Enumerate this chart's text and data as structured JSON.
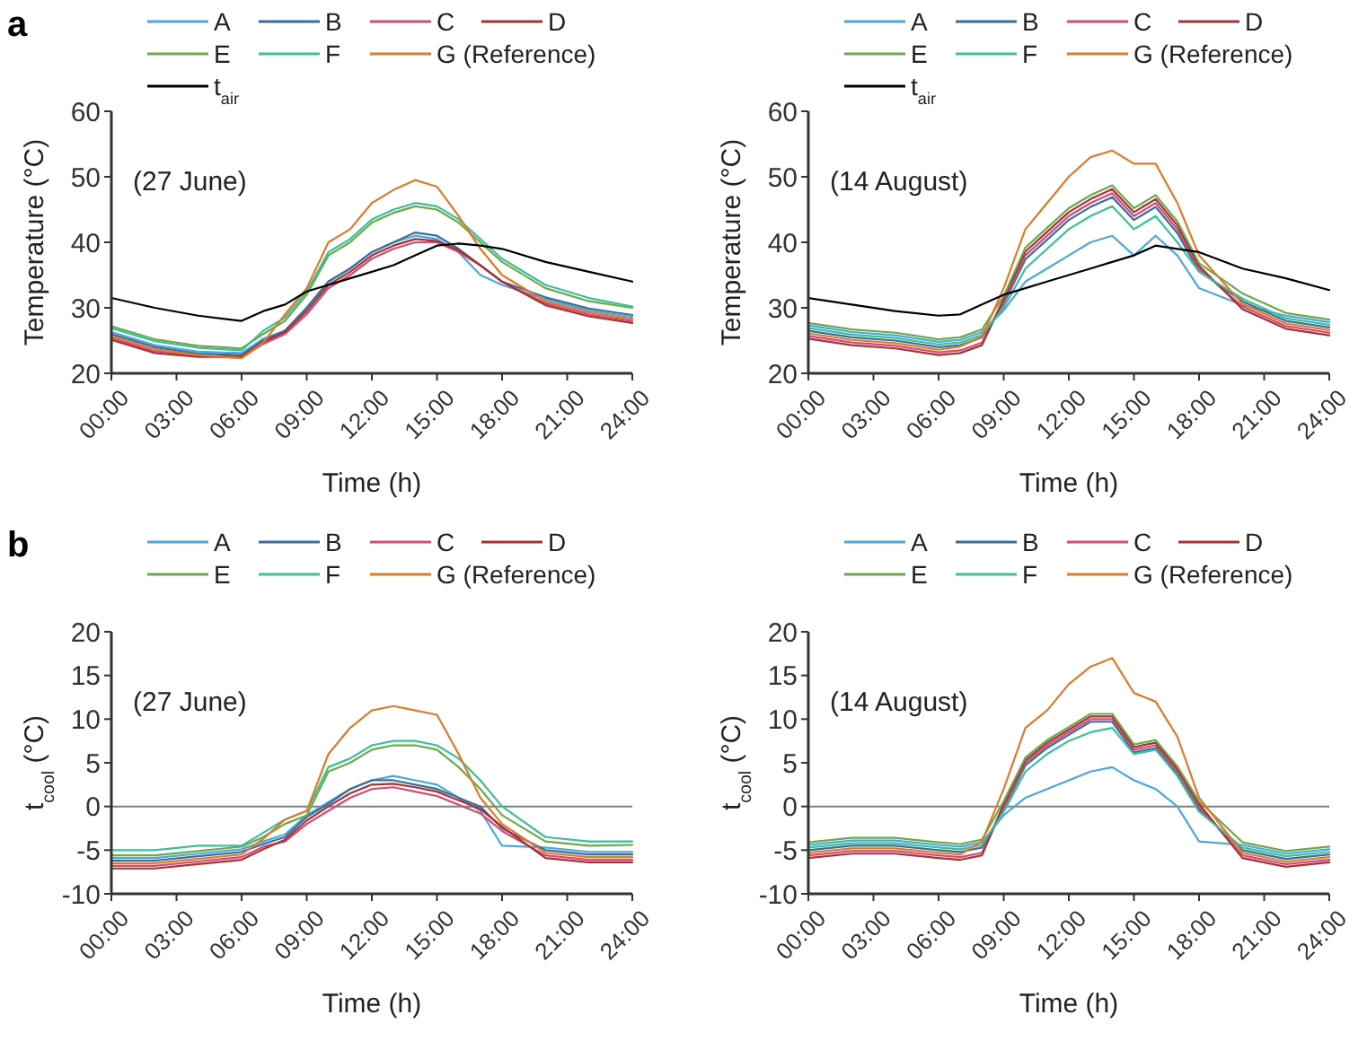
{
  "chart_data": [
    {
      "type": "line",
      "annotations": [
        "a",
        "(27 June)"
      ],
      "xlabel": "Time (h)",
      "ylabel": "Temperature (°C)",
      "legend": "top",
      "xlim": [
        0,
        24
      ],
      "ylim": [
        20,
        60
      ],
      "yticks": [
        20,
        30,
        40,
        50,
        60
      ],
      "xticks": [
        {
          "value": 0,
          "label": "00:00"
        },
        {
          "value": 3,
          "label": "03:00"
        },
        {
          "value": 6,
          "label": "06:00"
        },
        {
          "value": 9,
          "label": "09:00"
        },
        {
          "value": 12,
          "label": "12:00"
        },
        {
          "value": 15,
          "label": "15:00"
        },
        {
          "value": 18,
          "label": "18:00"
        },
        {
          "value": 21,
          "label": "21:00"
        },
        {
          "value": 24,
          "label": "24:00"
        }
      ],
      "x": [
        0,
        2,
        4,
        6,
        7,
        8,
        9,
        10,
        11,
        12,
        13,
        14,
        15,
        16,
        17,
        18,
        20,
        22,
        24
      ],
      "series": [
        {
          "name": "A",
          "color": "#4aa8dc",
          "values": [
            26.3,
            24.3,
            23.3,
            23.1,
            25.3,
            26.5,
            30,
            34,
            36,
            38.5,
            40,
            41,
            40.5,
            38.5,
            35,
            33.5,
            31.3,
            29.6,
            28.6
          ]
        },
        {
          "name": "B",
          "color": "#3a6e9a",
          "values": [
            26,
            24,
            23,
            22.8,
            25,
            26.5,
            30,
            34,
            36,
            38.5,
            40,
            41.5,
            41,
            39,
            36.5,
            34,
            31.6,
            29.9,
            28.9
          ]
        },
        {
          "name": "C",
          "color": "#d44a7a",
          "values": [
            25.4,
            23.4,
            22.6,
            22.4,
            24.5,
            26,
            29,
            33,
            35,
            37.5,
            39,
            40,
            40,
            38.5,
            36.5,
            34,
            30.7,
            29,
            28
          ]
        },
        {
          "name": "D",
          "color": "#a83232",
          "values": [
            25.1,
            23.1,
            22.5,
            22.6,
            24.8,
            26.3,
            29.5,
            33.5,
            35.5,
            38,
            39.5,
            40.5,
            40.2,
            38.8,
            36.5,
            34,
            30.4,
            28.7,
            27.7
          ]
        },
        {
          "name": "E",
          "color": "#6aaa4a",
          "values": [
            27.2,
            25.2,
            24.2,
            23.8,
            26,
            28,
            32,
            38,
            40,
            43,
            44.5,
            45.5,
            45,
            43,
            40,
            37,
            33,
            31,
            30
          ]
        },
        {
          "name": "F",
          "color": "#3cbf9a",
          "values": [
            26.9,
            24.9,
            23.9,
            23.5,
            26.5,
            28.5,
            32.5,
            38.5,
            40.5,
            43.5,
            45,
            46,
            45.5,
            43.5,
            40.5,
            37.5,
            33.5,
            31.5,
            30.2
          ]
        },
        {
          "name": "G (Reference)",
          "color": "#e07a2a",
          "values": [
            25.7,
            23.7,
            22.8,
            22.3,
            24.7,
            29,
            33,
            40,
            42,
            46,
            48,
            49.5,
            48.5,
            44,
            39,
            35,
            31,
            29.3,
            28.3
          ]
        },
        {
          "name": "t$_{air}$",
          "color": "#000000",
          "values": [
            31.5,
            30,
            28.8,
            28,
            29.5,
            30.5,
            32.5,
            33.5,
            34.5,
            35.5,
            36.5,
            38,
            39.5,
            39.8,
            39.5,
            39,
            37,
            35.5,
            34
          ]
        }
      ]
    },
    {
      "type": "line",
      "annotations": [
        "(14 August)"
      ],
      "xlabel": "Time (h)",
      "ylabel": "Temperature (°C)",
      "legend": "top",
      "xlim": [
        0,
        24
      ],
      "ylim": [
        20,
        60
      ],
      "yticks": [
        20,
        30,
        40,
        50,
        60
      ],
      "xticks": [
        {
          "value": 0,
          "label": "00:00"
        },
        {
          "value": 3,
          "label": "03:00"
        },
        {
          "value": 6,
          "label": "06:00"
        },
        {
          "value": 9,
          "label": "09:00"
        },
        {
          "value": 12,
          "label": "12:00"
        },
        {
          "value": 15,
          "label": "15:00"
        },
        {
          "value": 18,
          "label": "18:00"
        },
        {
          "value": 21,
          "label": "21:00"
        },
        {
          "value": 24,
          "label": "24:00"
        }
      ],
      "x": [
        0,
        2,
        4,
        6,
        7,
        8,
        9,
        10,
        11,
        12,
        13,
        14,
        15,
        16,
        17,
        18,
        20,
        22,
        24
      ],
      "series": [
        {
          "name": "A",
          "color": "#4aa8dc",
          "values": [
            27.3,
            26.3,
            25.8,
            24.8,
            25.1,
            26.3,
            29.6,
            34,
            36,
            38,
            40,
            41,
            38,
            41,
            38,
            33,
            30.4,
            28.8,
            27.8
          ]
        },
        {
          "name": "B",
          "color": "#3a6e9a",
          "values": [
            26.5,
            25.5,
            25,
            24,
            24.3,
            25.5,
            30.6,
            37.4,
            40.4,
            43.4,
            45.4,
            46.9,
            43.4,
            45.4,
            41.4,
            35.6,
            31,
            28,
            27
          ]
        },
        {
          "name": "C",
          "color": "#d44a7a",
          "values": [
            25.7,
            24.7,
            24.2,
            23.2,
            23.5,
            24.7,
            31,
            38,
            41,
            44,
            46,
            47.5,
            44,
            46,
            42,
            36,
            30.2,
            27.2,
            26.2
          ]
        },
        {
          "name": "D",
          "color": "#a83232",
          "values": [
            25.3,
            24.3,
            23.8,
            22.8,
            23.1,
            24.3,
            31.4,
            38.6,
            41.6,
            44.6,
            46.6,
            48.1,
            44.6,
            46.6,
            42.6,
            36.4,
            29.8,
            26.8,
            25.8
          ]
        },
        {
          "name": "E",
          "color": "#6aaa4a",
          "values": [
            27.7,
            26.7,
            26.2,
            25.2,
            25.5,
            26.7,
            31.8,
            39.2,
            42.2,
            45.2,
            47.2,
            48.7,
            45.2,
            47.2,
            43.2,
            36.8,
            32.2,
            29.2,
            28.2
          ]
        },
        {
          "name": "F",
          "color": "#3cbf9a",
          "values": [
            26.9,
            25.9,
            25.4,
            24.4,
            24.7,
            25.9,
            30,
            36,
            39,
            42,
            44,
            45.5,
            42,
            44,
            40,
            35.5,
            31.4,
            28.4,
            27.4
          ]
        },
        {
          "name": "G (Reference)",
          "color": "#e07a2a",
          "values": [
            26.1,
            25.1,
            24.6,
            23.6,
            24.1,
            25.6,
            33,
            42,
            46,
            50,
            53,
            54,
            52,
            52,
            46,
            38,
            30.6,
            27.6,
            26.6
          ]
        },
        {
          "name": "t$_{air}$",
          "color": "#000000",
          "values": [
            31.5,
            30.5,
            29.5,
            28.8,
            29,
            30.5,
            32,
            33,
            34,
            35,
            36,
            37,
            38,
            39.5,
            39,
            38.5,
            36,
            34.5,
            32.7
          ]
        }
      ]
    },
    {
      "type": "line",
      "annotations": [
        "b",
        "(27 June)"
      ],
      "xlabel": "Time (h)",
      "ylabel": "t$_{cool}$ (°C)",
      "legend": "top",
      "xlim": [
        0,
        24
      ],
      "ylim": [
        -10,
        20
      ],
      "yticks": [
        -10,
        -5,
        0,
        5,
        10,
        15,
        20
      ],
      "xticks": [
        {
          "value": 0,
          "label": "00:00"
        },
        {
          "value": 3,
          "label": "03:00"
        },
        {
          "value": 6,
          "label": "06:00"
        },
        {
          "value": 9,
          "label": "09:00"
        },
        {
          "value": 12,
          "label": "12:00"
        },
        {
          "value": 15,
          "label": "15:00"
        },
        {
          "value": 18,
          "label": "18:00"
        },
        {
          "value": 21,
          "label": "21:00"
        },
        {
          "value": 24,
          "label": "24:00"
        }
      ],
      "ref_lines": [
        {
          "axis": "y",
          "value": 0,
          "color": "#7f7f7f"
        }
      ],
      "x": [
        0,
        2,
        4,
        6,
        7,
        8,
        9,
        10,
        11,
        12,
        13,
        14,
        15,
        16,
        17,
        18,
        20,
        22,
        24
      ],
      "series": [
        {
          "name": "A",
          "color": "#4aa8dc",
          "values": [
            -5.9,
            -5.9,
            -5.4,
            -4.9,
            -4,
            -3.2,
            -1,
            0.5,
            2,
            3,
            3.5,
            3,
            2.5,
            1,
            -0.5,
            -4.5,
            -4.7,
            -5.2,
            -5.2
          ]
        },
        {
          "name": "B",
          "color": "#3a6e9a",
          "values": [
            -6.2,
            -6.2,
            -5.7,
            -5.2,
            -4.3,
            -3.5,
            -1.2,
            0.3,
            2,
            3,
            3,
            2.5,
            2,
            1,
            0,
            -2.5,
            -5,
            -5.5,
            -5.5
          ]
        },
        {
          "name": "C",
          "color": "#d44a7a",
          "values": [
            -6.8,
            -6.8,
            -6.3,
            -5.8,
            -4.6,
            -4,
            -2,
            -0.5,
            1,
            2,
            2.2,
            1.7,
            1.2,
            0.2,
            -0.8,
            -2.8,
            -5.6,
            -6.1,
            -6.1
          ]
        },
        {
          "name": "D",
          "color": "#a83232",
          "values": [
            -7.1,
            -7.1,
            -6.6,
            -6.1,
            -4.9,
            -3.8,
            -1.6,
            0,
            1.5,
            2.5,
            2.6,
            2.2,
            1.7,
            0.7,
            -0.3,
            -2.3,
            -5.9,
            -6.4,
            -6.4
          ]
        },
        {
          "name": "E",
          "color": "#6aaa4a",
          "values": [
            -5.6,
            -5.6,
            -5.1,
            -4.6,
            -3.5,
            -2,
            -1,
            4,
            5,
            6.5,
            7,
            7,
            6.5,
            4.5,
            2,
            -1,
            -4,
            -4.5,
            -4.4
          ]
        },
        {
          "name": "F",
          "color": "#3cbf9a",
          "values": [
            -5,
            -5,
            -4.5,
            -4.5,
            -3,
            -1.5,
            -0.5,
            4.5,
            5.5,
            7,
            7.5,
            7.5,
            7,
            5.5,
            3,
            0,
            -3.5,
            -4,
            -4
          ]
        },
        {
          "name": "G (Reference)",
          "color": "#e07a2a",
          "values": [
            -6.5,
            -6.5,
            -6,
            -5.5,
            -3.7,
            -1.5,
            -0.5,
            6,
            9,
            11,
            11.5,
            11,
            10.5,
            6,
            1,
            -2,
            -5.3,
            -5.8,
            -5.8
          ]
        }
      ]
    },
    {
      "type": "line",
      "annotations": [
        "(14 August)"
      ],
      "xlabel": "Time (h)",
      "ylabel": "t$_{cool}$ (°C)",
      "legend": "top",
      "xlim": [
        0,
        24
      ],
      "ylim": [
        -10,
        20
      ],
      "yticks": [
        -10,
        -5,
        0,
        5,
        10,
        15,
        20
      ],
      "xticks": [
        {
          "value": 0,
          "label": "00:00"
        },
        {
          "value": 3,
          "label": "03:00"
        },
        {
          "value": 6,
          "label": "06:00"
        },
        {
          "value": 9,
          "label": "09:00"
        },
        {
          "value": 12,
          "label": "12:00"
        },
        {
          "value": 15,
          "label": "15:00"
        },
        {
          "value": 18,
          "label": "18:00"
        },
        {
          "value": 21,
          "label": "21:00"
        },
        {
          "value": 24,
          "label": "24:00"
        }
      ],
      "ref_lines": [
        {
          "axis": "y",
          "value": 0,
          "color": "#7f7f7f"
        }
      ],
      "x": [
        0,
        2,
        4,
        6,
        7,
        8,
        9,
        10,
        11,
        12,
        13,
        14,
        15,
        16,
        17,
        18,
        20,
        22,
        24
      ],
      "series": [
        {
          "name": "A",
          "color": "#4aa8dc",
          "values": [
            -4.4,
            -3.9,
            -3.9,
            -4.4,
            -4.6,
            -4.1,
            -1,
            1,
            2,
            3,
            4,
            4.5,
            3,
            2,
            0,
            -4,
            -4.4,
            -5.4,
            -4.9
          ]
        },
        {
          "name": "B",
          "color": "#3a6e9a",
          "values": [
            -5,
            -4.5,
            -4.5,
            -5,
            -5.2,
            -4.7,
            -0.3,
            4.7,
            6.7,
            8.2,
            9.7,
            9.7,
            6.2,
            6.7,
            3.7,
            -0.3,
            -5,
            -6,
            -5.5
          ]
        },
        {
          "name": "C",
          "color": "#d44a7a",
          "values": [
            -5.6,
            -5.1,
            -5.1,
            -5.6,
            -5.8,
            -5.3,
            0,
            5,
            7,
            8.5,
            10,
            10,
            6.5,
            7,
            4,
            0,
            -5.6,
            -6.6,
            -6.1
          ]
        },
        {
          "name": "D",
          "color": "#a83232",
          "values": [
            -5.9,
            -5.4,
            -5.4,
            -5.9,
            -6.1,
            -5.6,
            0.3,
            5.3,
            7.3,
            8.8,
            10.3,
            10.3,
            6.8,
            7.3,
            4.3,
            0.3,
            -5.9,
            -6.9,
            -6.4
          ]
        },
        {
          "name": "E",
          "color": "#6aaa4a",
          "values": [
            -4.1,
            -3.6,
            -3.6,
            -4.1,
            -4.3,
            -3.8,
            0.6,
            5.6,
            7.6,
            9.1,
            10.6,
            10.6,
            7.1,
            7.6,
            4.6,
            0.6,
            -4.1,
            -5.1,
            -4.6
          ]
        },
        {
          "name": "F",
          "color": "#3cbf9a",
          "values": [
            -4.7,
            -4.2,
            -4.2,
            -4.7,
            -4.9,
            -4.4,
            -0.6,
            4,
            6,
            7.5,
            8.5,
            9,
            6,
            6.5,
            3.5,
            -0.6,
            -4.7,
            -5.7,
            -5.2
          ]
        },
        {
          "name": "G (Reference)",
          "color": "#e07a2a",
          "values": [
            -5.3,
            -4.8,
            -4.8,
            -5.3,
            -5.5,
            -4,
            2,
            9,
            11,
            14,
            16,
            17,
            13,
            12,
            8,
            1,
            -5.3,
            -6.3,
            -5.8
          ]
        }
      ]
    }
  ]
}
